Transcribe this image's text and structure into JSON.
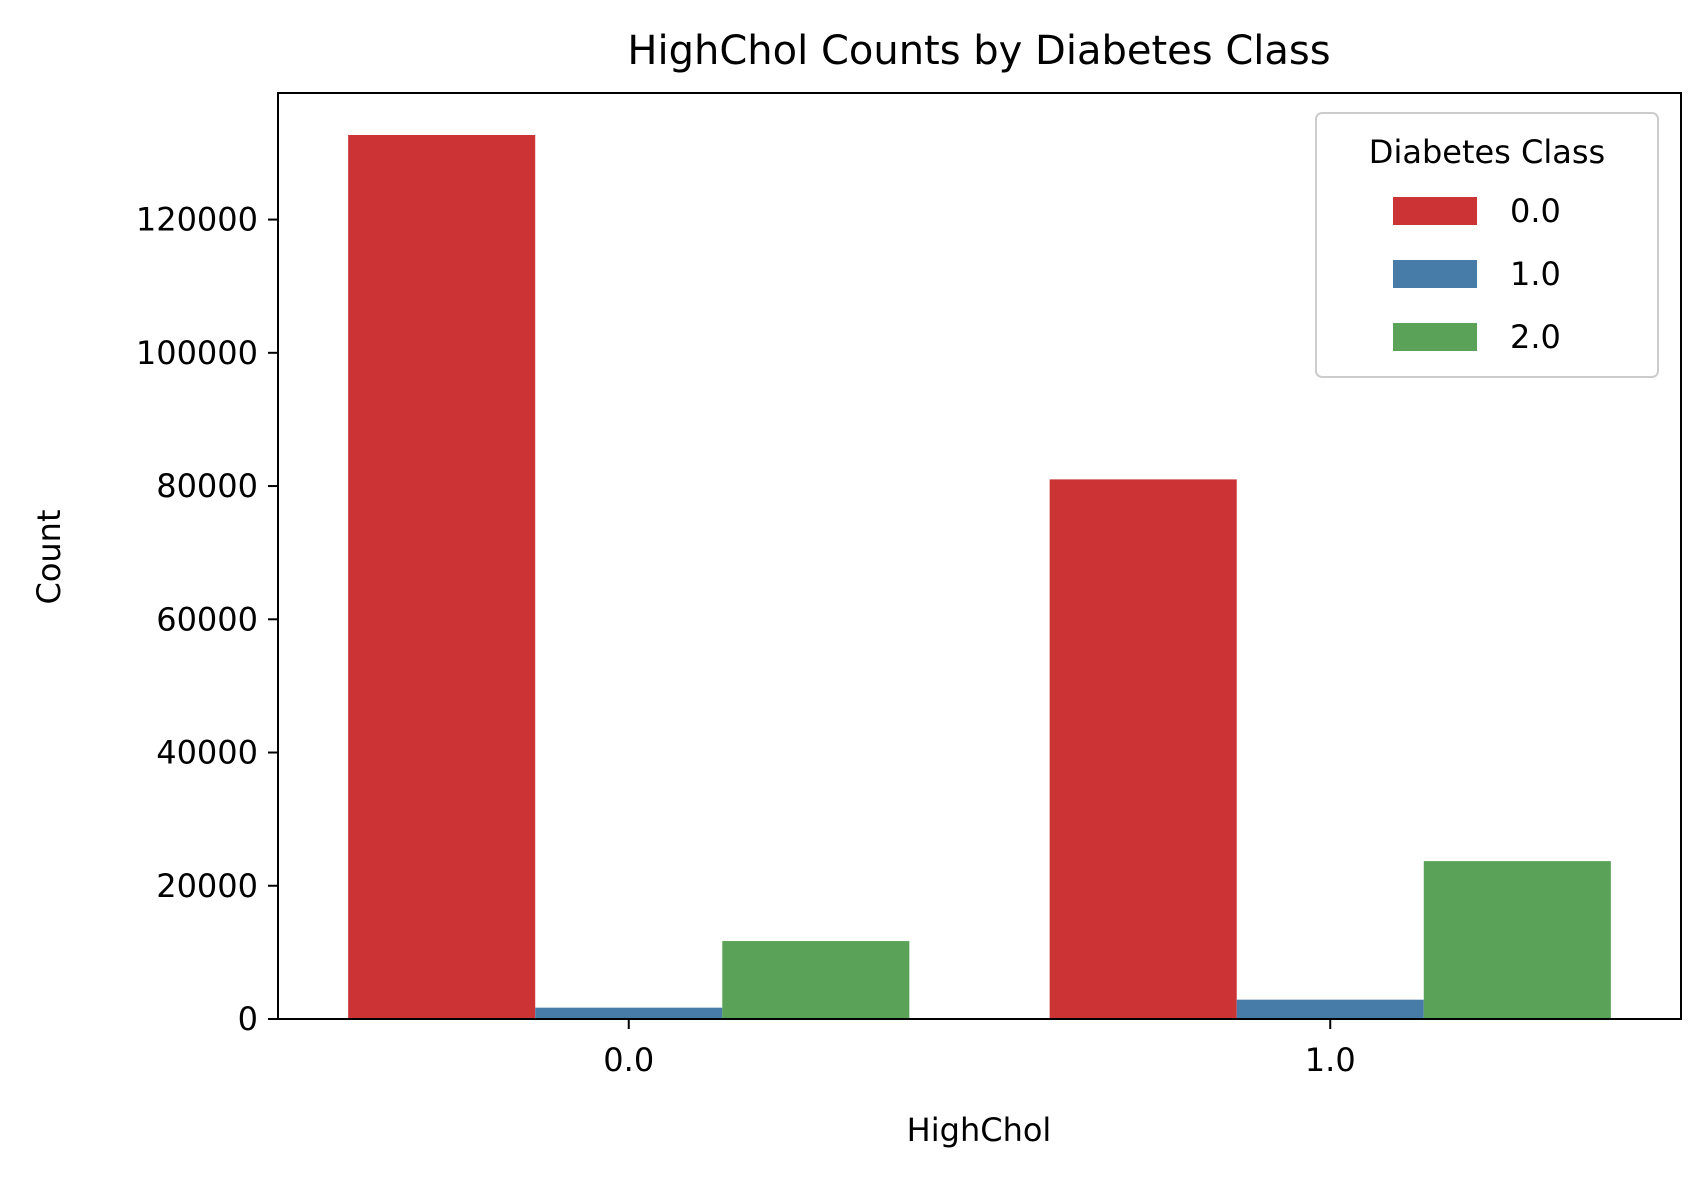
{
  "chart_data": {
    "type": "bar",
    "title": "HighChol Counts by Diabetes Class",
    "xlabel": "HighChol",
    "ylabel": "Count",
    "categories": [
      "0.0",
      "1.0"
    ],
    "series": [
      {
        "name": "0.0",
        "values": [
          132700,
          81000
        ]
      },
      {
        "name": "1.0",
        "values": [
          1700,
          2900
        ]
      },
      {
        "name": "2.0",
        "values": [
          11700,
          23700
        ]
      }
    ],
    "ylim": [
      0,
      139000
    ],
    "yticks": [
      0,
      20000,
      40000,
      60000,
      80000,
      100000,
      120000
    ],
    "legend": {
      "title": "Diabetes Class",
      "placement": "top-right"
    },
    "colors": [
      "#cb3335",
      "#477ca8",
      "#59a257"
    ],
    "grid": false
  }
}
